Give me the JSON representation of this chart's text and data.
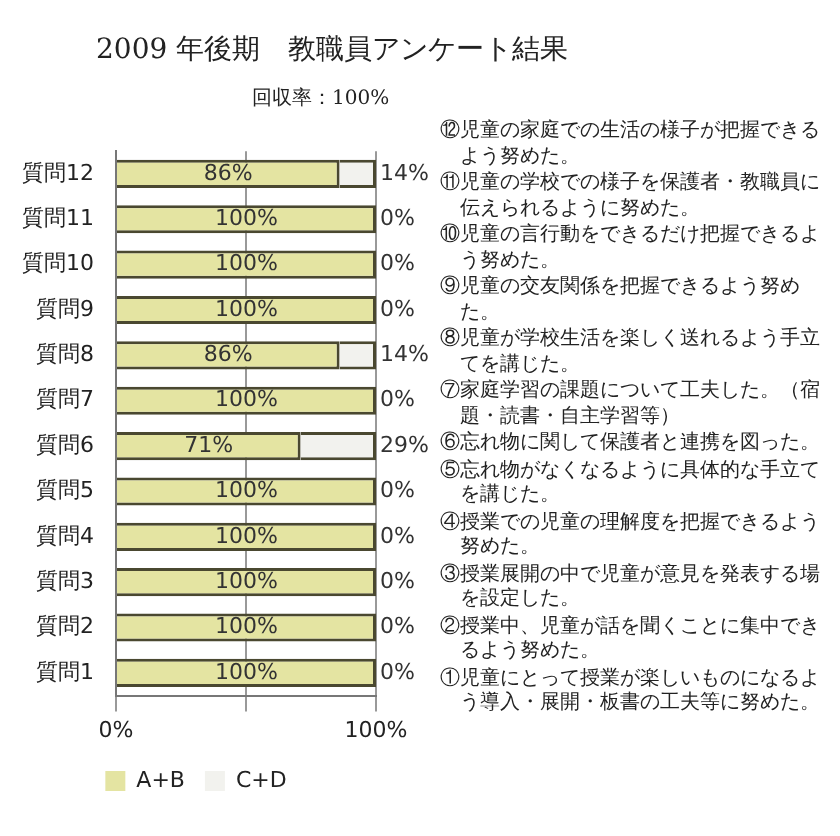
{
  "chart_data": {
    "type": "bar",
    "orientation": "horizontal",
    "stacked": true,
    "title": "2009 年後期　教職員アンケート結果",
    "subtitle": "回収率：100%",
    "categories": [
      "質問12",
      "質問11",
      "質問10",
      "質問9",
      "質問8",
      "質問7",
      "質問6",
      "質問5",
      "質問4",
      "質問3",
      "質問2",
      "質問1"
    ],
    "series": [
      {
        "name": "A+B",
        "color": "#e4e4a2",
        "values": [
          86,
          100,
          100,
          100,
          86,
          100,
          71,
          100,
          100,
          100,
          100,
          100
        ],
        "value_labels": [
          "86%",
          "100%",
          "100%",
          "100%",
          "86%",
          "100%",
          "71%",
          "100%",
          "100%",
          "100%",
          "100%",
          "100%"
        ]
      },
      {
        "name": "C+D",
        "color": "#f2f2ee",
        "values": [
          14,
          0,
          0,
          0,
          14,
          0,
          29,
          0,
          0,
          0,
          0,
          0
        ],
        "value_labels": [
          "14%",
          "0%",
          "0%",
          "0%",
          "14%",
          "0%",
          "29%",
          "0%",
          "0%",
          "0%",
          "0%",
          "0%"
        ]
      }
    ],
    "xlim": [
      0,
      100
    ],
    "xticks": [
      {
        "value": 0,
        "label": "0%"
      },
      {
        "value": 50,
        "label": null
      },
      {
        "value": 100,
        "label": "100%"
      }
    ],
    "grid": "x",
    "legend": "bottom",
    "annotations": [
      "⑫児童の家庭での生活の様子が把握できるよう努めた。",
      "⑪児童の学校での様子を保護者・教職員に伝えられるように努めた。",
      "⑩児童の言行動をできるだけ把握できるよう努めた。",
      "⑨児童の交友関係を把握できるよう努めた。",
      "⑧児童が学校生活を楽しく送れるよう手立てを講じた。",
      "⑦家庭学習の課題について工夫した。（宿題・読書・自主学習等）",
      "⑥忘れ物に関して保護者と連携を図った。",
      "⑤忘れ物がなくなるように具体的な手立てを講じた。",
      "④授業での児童の理解度を把握できるよう努めた。",
      "③授業展開の中で児童が意見を発表する場を設定した。",
      "②授業中、児童が話を聞くことに集中できるよう努めた。",
      "①児童にとって授業が楽しいものになるよう導入・展開・板書の工夫等に努めた。"
    ]
  }
}
